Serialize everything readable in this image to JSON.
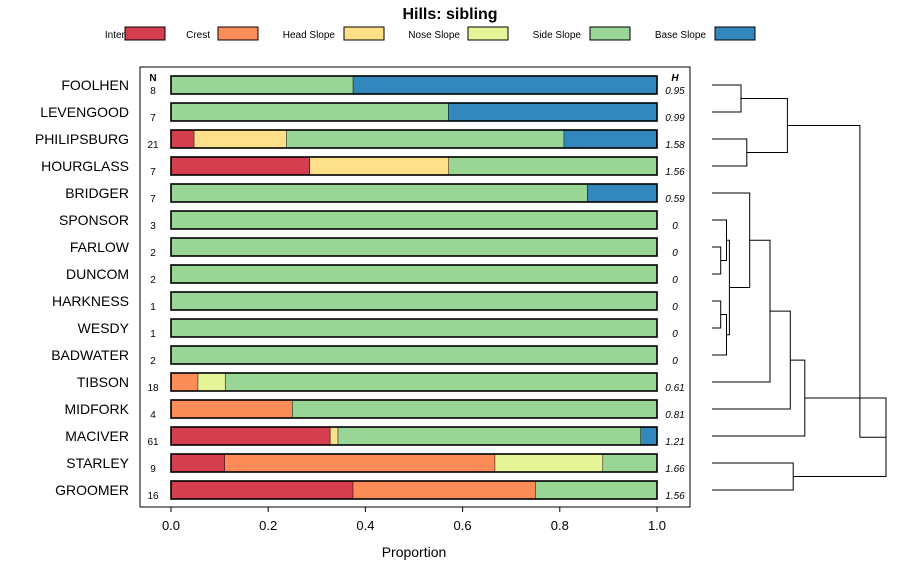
{
  "chart_data": {
    "type": "bar",
    "orientation": "horizontal-stacked",
    "title": "Hills: sibling",
    "xlabel": "Proportion",
    "xlim": [
      0,
      1
    ],
    "xticks": [
      "0.0",
      "0.2",
      "0.4",
      "0.6",
      "0.8",
      "1.0"
    ],
    "xtick_values": [
      0,
      0.2,
      0.4,
      0.6,
      0.8,
      1.0
    ],
    "n_header": "N",
    "h_header": "H",
    "legend": [
      {
        "name": "Interfluve",
        "color": "#D53E4F"
      },
      {
        "name": "Crest",
        "color": "#FC8D59"
      },
      {
        "name": "Head Slope",
        "color": "#FEE08B"
      },
      {
        "name": "Nose Slope",
        "color": "#E6F598"
      },
      {
        "name": "Side Slope",
        "color": "#99D594"
      },
      {
        "name": "Base Slope",
        "color": "#3288BD"
      }
    ],
    "rows": [
      {
        "label": "FOOLHEN",
        "n": "8",
        "h": "0.95",
        "values": [
          0,
          0,
          0,
          0,
          0.375,
          0.625
        ]
      },
      {
        "label": "LEVENGOOD",
        "n": "7",
        "h": "0.99",
        "values": [
          0,
          0,
          0,
          0,
          0.571,
          0.429
        ]
      },
      {
        "label": "PHILIPSBURG",
        "n": "21",
        "h": "1.58",
        "values": [
          0.048,
          0,
          0.19,
          0,
          0.571,
          0.19
        ]
      },
      {
        "label": "HOURGLASS",
        "n": "7",
        "h": "1.56",
        "values": [
          0.286,
          0,
          0.286,
          0,
          0.428,
          0
        ]
      },
      {
        "label": "BRIDGER",
        "n": "7",
        "h": "0.59",
        "values": [
          0,
          0,
          0,
          0,
          0.857,
          0.143
        ]
      },
      {
        "label": "SPONSOR",
        "n": "3",
        "h": "0",
        "values": [
          0,
          0,
          0,
          0,
          1,
          0
        ]
      },
      {
        "label": "FARLOW",
        "n": "2",
        "h": "0",
        "values": [
          0,
          0,
          0,
          0,
          1,
          0
        ]
      },
      {
        "label": "DUNCOM",
        "n": "2",
        "h": "0",
        "values": [
          0,
          0,
          0,
          0,
          1,
          0
        ]
      },
      {
        "label": "HARKNESS",
        "n": "1",
        "h": "0",
        "values": [
          0,
          0,
          0,
          0,
          1,
          0
        ]
      },
      {
        "label": "WESDY",
        "n": "1",
        "h": "0",
        "values": [
          0,
          0,
          0,
          0,
          1,
          0
        ]
      },
      {
        "label": "BADWATER",
        "n": "2",
        "h": "0",
        "values": [
          0,
          0,
          0,
          0,
          1,
          0
        ]
      },
      {
        "label": "TIBSON",
        "n": "18",
        "h": "0.61",
        "values": [
          0,
          0.056,
          0,
          0.056,
          0.888,
          0
        ]
      },
      {
        "label": "MIDFORK",
        "n": "4",
        "h": "0.81",
        "values": [
          0,
          0.25,
          0,
          0,
          0.75,
          0
        ]
      },
      {
        "label": "MACIVER",
        "n": "61",
        "h": "1.21",
        "values": [
          0.328,
          0,
          0.016,
          0,
          0.623,
          0.033
        ]
      },
      {
        "label": "STARLEY",
        "n": "9",
        "h": "1.66",
        "values": [
          0.111,
          0.556,
          0,
          0.222,
          0.111,
          0
        ]
      },
      {
        "label": "GROOMER",
        "n": "16",
        "h": "1.56",
        "values": [
          0.375,
          0.375,
          0,
          0,
          0.25,
          0
        ]
      }
    ],
    "dendrogram": {
      "merges": [
        {
          "id": "FL",
          "a": 0,
          "b": 1,
          "h": 0.1
        },
        {
          "id": "PH",
          "a": 2,
          "b": 3,
          "h": 0.12
        },
        {
          "id": "TOP4",
          "a": "FL",
          "b": "PH",
          "h": 0.26
        },
        {
          "id": "FD",
          "a": 6,
          "b": 7,
          "h": 0.03
        },
        {
          "id": "SFD",
          "a": 5,
          "b": "FD",
          "h": 0.05
        },
        {
          "id": "HW",
          "a": 8,
          "b": 9,
          "h": 0.03
        },
        {
          "id": "HWB",
          "a": "HW",
          "b": 10,
          "h": 0.05
        },
        {
          "id": "ZERO",
          "a": "SFD",
          "b": "HWB",
          "h": 0.06
        },
        {
          "id": "ZB",
          "a": 4,
          "b": "ZERO",
          "h": 0.13
        },
        {
          "id": "ZBT",
          "a": "ZB",
          "b": 11,
          "h": 0.2
        },
        {
          "id": "ZBTM",
          "a": "ZBT",
          "b": 12,
          "h": 0.27
        },
        {
          "id": "ZBTMM",
          "a": "ZBTM",
          "b": 13,
          "h": 0.32
        },
        {
          "id": "SG",
          "a": 14,
          "b": 15,
          "h": 0.28
        },
        {
          "id": "LOW",
          "a": "ZBTMM",
          "b": "SG",
          "h": 0.6
        },
        {
          "id": "ROOT",
          "a": "TOP4",
          "b": "LOW",
          "h": 0.51
        }
      ]
    }
  }
}
